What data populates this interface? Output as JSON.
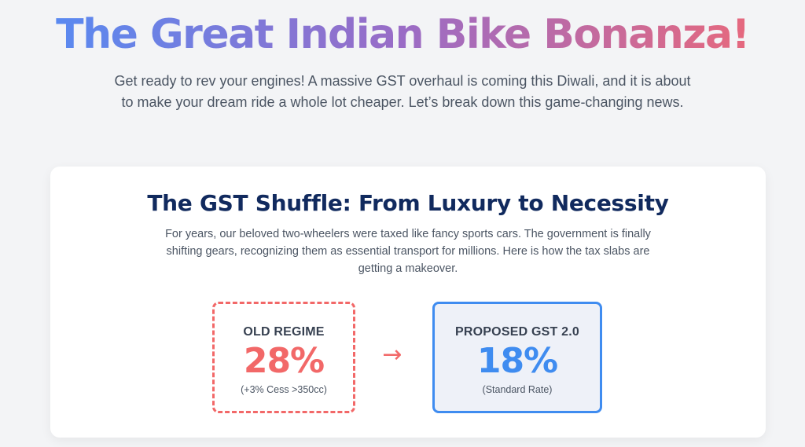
{
  "hero": {
    "title": "The Great Indian Bike Bonanza!",
    "subtitle": "Get ready to rev your engines! A massive GST overhaul is coming this Diwali, and it is about to make your dream ride a whole lot cheaper. Let’s break down this game-changing news."
  },
  "gst_section": {
    "title": "The GST Shuffle: From Luxury to Necessity",
    "text": "For years, our beloved two-wheelers were taxed like fancy sports cars. The government is finally shifting gears, recognizing them as essential transport for millions. Here is how the tax slabs are getting a makeover.",
    "old_regime": {
      "label": "OLD REGIME",
      "rate": "28%",
      "note": "(+3% Cess >350cc)",
      "color": "#f26868"
    },
    "arrow": "→",
    "new_regime": {
      "label": "PROPOSED GST 2.0",
      "rate": "18%",
      "note": "(Standard Rate)",
      "color": "#3f8cf0"
    }
  }
}
